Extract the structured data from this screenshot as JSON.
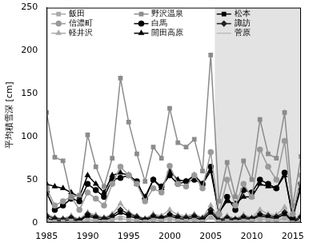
{
  "chart_data": {
    "type": "line",
    "y_label": "平均積雪深 [cm]",
    "x": [
      1985,
      1986,
      1987,
      1988,
      1989,
      1990,
      1991,
      1992,
      1993,
      1994,
      1995,
      1996,
      1997,
      1998,
      1999,
      2000,
      2001,
      2002,
      2003,
      2004,
      2005,
      2006,
      2007,
      2008,
      2009,
      2010,
      2011,
      2012,
      2013,
      2014,
      2015,
      2016
    ],
    "xlim": [
      1985,
      2016
    ],
    "xticks": [
      1985,
      1990,
      1995,
      2000,
      2005,
      2010,
      2015
    ],
    "ylim": [
      0,
      250
    ],
    "yticks": [
      0,
      50,
      100,
      150,
      200,
      250
    ],
    "grid": false,
    "legend": "upper left",
    "shaded_range": [
      2005.5,
      2016
    ],
    "series": [
      {
        "name": "飯田",
        "color": "#aaaaaa",
        "marker": "square",
        "values": [
          2,
          1,
          1,
          2,
          0,
          3,
          2,
          1,
          3,
          5,
          3,
          2,
          1,
          3,
          2,
          4,
          2,
          2,
          3,
          1,
          6,
          1,
          2,
          1,
          2,
          2,
          4,
          3,
          2,
          5,
          0,
          2
        ]
      },
      {
        "name": "野沢温泉",
        "color": "#8c8c8c",
        "marker": "square",
        "values": [
          128,
          76,
          72,
          30,
          32,
          102,
          65,
          42,
          75,
          168,
          117,
          80,
          48,
          88,
          75,
          133,
          93,
          88,
          97,
          60,
          195,
          25,
          70,
          30,
          72,
          50,
          120,
          80,
          75,
          128,
          20,
          77
        ]
      },
      {
        "name": "松本",
        "color": "#000000",
        "marker": "square",
        "values": [
          5,
          3,
          2,
          4,
          2,
          8,
          5,
          3,
          6,
          12,
          8,
          5,
          3,
          6,
          5,
          8,
          5,
          4,
          6,
          3,
          12,
          2,
          4,
          3,
          5,
          4,
          8,
          6,
          5,
          10,
          1,
          5
        ]
      },
      {
        "name": "信濃町",
        "color": "#9a9a9a",
        "marker": "circle",
        "values": [
          40,
          20,
          25,
          30,
          15,
          35,
          28,
          20,
          45,
          65,
          55,
          45,
          25,
          40,
          35,
          66,
          45,
          42,
          55,
          40,
          82,
          10,
          50,
          20,
          45,
          30,
          85,
          65,
          50,
          95,
          10,
          55
        ]
      },
      {
        "name": "白馬",
        "color": "#000000",
        "marker": "circle",
        "values": [
          35,
          15,
          20,
          28,
          25,
          45,
          38,
          30,
          50,
          52,
          55,
          48,
          28,
          50,
          42,
          55,
          45,
          48,
          50,
          45,
          65,
          10,
          30,
          15,
          38,
          35,
          50,
          45,
          40,
          58,
          5,
          45
        ]
      },
      {
        "name": "諏訪",
        "color": "#222222",
        "marker": "diamond",
        "values": [
          8,
          5,
          4,
          6,
          3,
          10,
          7,
          5,
          8,
          15,
          10,
          7,
          4,
          8,
          6,
          10,
          7,
          6,
          8,
          5,
          15,
          3,
          6,
          4,
          7,
          5,
          10,
          8,
          7,
          12,
          2,
          7
        ]
      },
      {
        "name": "軽井沢",
        "color": "#aaaaaa",
        "marker": "triangle",
        "values": [
          10,
          6,
          5,
          8,
          4,
          12,
          9,
          6,
          10,
          22,
          12,
          8,
          5,
          10,
          8,
          15,
          9,
          8,
          10,
          6,
          20,
          4,
          8,
          5,
          9,
          6,
          15,
          10,
          9,
          18,
          2,
          10
        ]
      },
      {
        "name": "開田高原",
        "color": "#000000",
        "marker": "triangle",
        "values": [
          45,
          42,
          40,
          35,
          30,
          55,
          45,
          35,
          55,
          58,
          55,
          45,
          30,
          50,
          40,
          60,
          50,
          48,
          55,
          45,
          60,
          12,
          25,
          22,
          30,
          30,
          45,
          42,
          40,
          55,
          8,
          40
        ]
      },
      {
        "name": "菅原",
        "color": "#bbbbbb",
        "marker": "none",
        "values": [
          3,
          2,
          2,
          3,
          1,
          5,
          3,
          2,
          4,
          8,
          5,
          3,
          2,
          4,
          3,
          6,
          3,
          3,
          4,
          2,
          8,
          1,
          3,
          2,
          3,
          3,
          6,
          4,
          3,
          7,
          1,
          4
        ]
      }
    ]
  }
}
